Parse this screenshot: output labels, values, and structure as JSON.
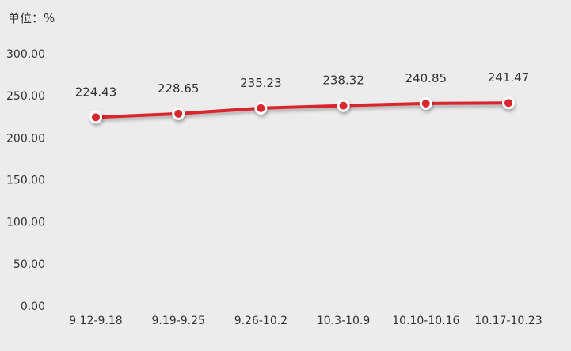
{
  "chart_data": {
    "type": "line",
    "unit_label": "单位：%",
    "categories": [
      "9.12-9.18",
      "9.19-9.25",
      "9.26-10.2",
      "10.3-10.9",
      "10.10-10.16",
      "10.17-10.23"
    ],
    "series": [
      {
        "values": [
          224.43,
          228.65,
          235.23,
          238.32,
          240.85,
          241.47
        ]
      }
    ],
    "data_labels": [
      "224.43",
      "228.65",
      "235.23",
      "238.32",
      "240.85",
      "241.47"
    ],
    "y_ticks": [
      "0.00",
      "50.00",
      "100.00",
      "150.00",
      "200.00",
      "250.00",
      "300.00"
    ],
    "ylim": [
      0,
      300
    ],
    "grid": false,
    "colors": {
      "line": "#d9272e",
      "marker_fill": "#d9272e",
      "marker_ring": "#ffffff",
      "background": "#ececec"
    }
  }
}
